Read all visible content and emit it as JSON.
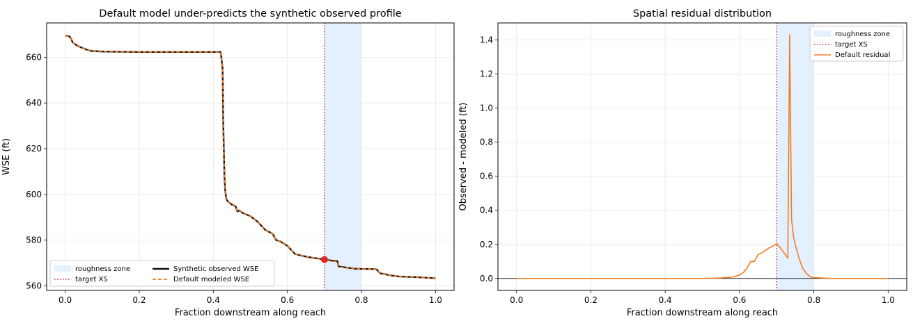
{
  "colors": {
    "roughness_fill": "#e4f0fd",
    "target_line": "#c62828",
    "observed": "#111111",
    "modeled": "#f07d22",
    "residual": "#f07d22",
    "grid": "#e6e6e6",
    "marker": "#e0262b"
  },
  "chart_data": [
    {
      "type": "line",
      "title": "Default model under-predicts the synthetic observed profile",
      "xlabel": "Fraction downstream along reach",
      "ylabel": "WSE (ft)",
      "xlim": [
        -0.05,
        1.05
      ],
      "ylim": [
        558,
        675
      ],
      "xticks": [
        0,
        0.2,
        0.4,
        0.6,
        0.8,
        1.0
      ],
      "xtick_labels": [
        "0.0",
        "0.2",
        "0.4",
        "0.6",
        "0.8",
        "1.0"
      ],
      "yticks": [
        560,
        580,
        600,
        620,
        640,
        660
      ],
      "ytick_labels": [
        "560",
        "580",
        "600",
        "620",
        "640",
        "660"
      ],
      "grid": true,
      "legend_position": "lower-left",
      "roughness_zone": [
        0.7,
        0.8
      ],
      "target_xs": 0.7,
      "target_point": [
        0.7,
        571.5
      ],
      "legend": {
        "roughness": "roughness zone",
        "target": "target XS",
        "observed": "Synthetic observed WSE",
        "modeled": "Default modeled WSE"
      },
      "series": [
        {
          "name": "Synthetic observed WSE",
          "x": [
            0,
            0.01,
            0.015,
            0.02,
            0.03,
            0.04,
            0.06,
            0.07,
            0.1,
            0.2,
            0.3,
            0.42,
            0.425,
            0.427,
            0.43,
            0.432,
            0.435,
            0.44,
            0.45,
            0.46,
            0.465,
            0.47,
            0.48,
            0.5,
            0.52,
            0.54,
            0.56,
            0.57,
            0.58,
            0.6,
            0.62,
            0.63,
            0.65,
            0.67,
            0.69,
            0.7,
            0.72,
            0.735,
            0.738,
            0.75,
            0.78,
            0.8,
            0.84,
            0.85,
            0.86,
            0.88,
            0.9,
            0.95,
            1.0
          ],
          "y": [
            669.5,
            669.2,
            668.5,
            666.5,
            665.3,
            664.5,
            663.2,
            662.7,
            662.5,
            662.3,
            662.3,
            662.3,
            655,
            630,
            608,
            602,
            598,
            596.8,
            595.5,
            594.8,
            592.5,
            593,
            591.8,
            590.5,
            588,
            584.5,
            582.8,
            580,
            579.5,
            577.5,
            574,
            573.5,
            572.8,
            572.2,
            571.8,
            571.5,
            571,
            570.8,
            568.5,
            568.2,
            567.5,
            567.4,
            567.3,
            565.5,
            565.2,
            564.5,
            564.1,
            563.8,
            563.3
          ]
        },
        {
          "name": "Default modeled WSE",
          "x": [
            0,
            0.01,
            0.015,
            0.02,
            0.03,
            0.04,
            0.06,
            0.07,
            0.1,
            0.2,
            0.3,
            0.42,
            0.425,
            0.427,
            0.43,
            0.432,
            0.435,
            0.44,
            0.45,
            0.46,
            0.465,
            0.47,
            0.48,
            0.5,
            0.52,
            0.54,
            0.56,
            0.57,
            0.58,
            0.6,
            0.62,
            0.63,
            0.65,
            0.67,
            0.69,
            0.7,
            0.72,
            0.735,
            0.738,
            0.75,
            0.78,
            0.8,
            0.84,
            0.85,
            0.86,
            0.88,
            0.9,
            0.95,
            1.0
          ],
          "y": [
            669.5,
            669.2,
            668.5,
            666.5,
            665.3,
            664.5,
            663.2,
            662.7,
            662.5,
            662.3,
            662.3,
            662.3,
            655,
            630,
            608,
            602,
            598,
            596.8,
            595.5,
            594.8,
            592.5,
            593,
            591.8,
            590.5,
            588,
            584.5,
            582.8,
            580,
            579.5,
            577.5,
            574,
            573.5,
            572.8,
            572.2,
            571.6,
            571.3,
            570.8,
            570.6,
            568.3,
            568.1,
            567.5,
            567.4,
            567.3,
            565.5,
            565.2,
            564.5,
            564.1,
            563.8,
            563.3
          ]
        }
      ]
    },
    {
      "type": "line",
      "title": "Spatial residual distribution",
      "xlabel": "Fraction downstream along reach",
      "ylabel": "Observed - modeled (ft)",
      "xlim": [
        -0.05,
        1.05
      ],
      "ylim": [
        -0.07,
        1.5
      ],
      "xticks": [
        0,
        0.2,
        0.4,
        0.6,
        0.8,
        1.0
      ],
      "xtick_labels": [
        "0.0",
        "0.2",
        "0.4",
        "0.6",
        "0.8",
        "1.0"
      ],
      "yticks": [
        0,
        0.2,
        0.4,
        0.6,
        0.8,
        1.0,
        1.2,
        1.4
      ],
      "ytick_labels": [
        "0.0",
        "0.2",
        "0.4",
        "0.6",
        "0.8",
        "1.0",
        "1.2",
        "1.4"
      ],
      "grid": true,
      "legend_position": "top-right",
      "roughness_zone": [
        0.7,
        0.8
      ],
      "target_xs": 0.7,
      "zero_line": 0,
      "legend": {
        "roughness": "roughness zone",
        "target": "target XS",
        "residual": "Default residual"
      },
      "series": [
        {
          "name": "Default residual",
          "x": [
            0,
            0.5,
            0.55,
            0.58,
            0.6,
            0.61,
            0.62,
            0.63,
            0.64,
            0.65,
            0.66,
            0.68,
            0.69,
            0.7,
            0.71,
            0.72,
            0.73,
            0.735,
            0.74,
            0.745,
            0.75,
            0.76,
            0.77,
            0.78,
            0.79,
            0.8,
            0.85,
            1.0
          ],
          "y": [
            0,
            0,
            0.003,
            0.008,
            0.02,
            0.035,
            0.06,
            0.1,
            0.1,
            0.14,
            0.15,
            0.18,
            0.19,
            0.205,
            0.18,
            0.15,
            0.12,
            1.43,
            0.35,
            0.25,
            0.2,
            0.12,
            0.06,
            0.03,
            0.01,
            0.005,
            0,
            0
          ]
        }
      ]
    }
  ]
}
